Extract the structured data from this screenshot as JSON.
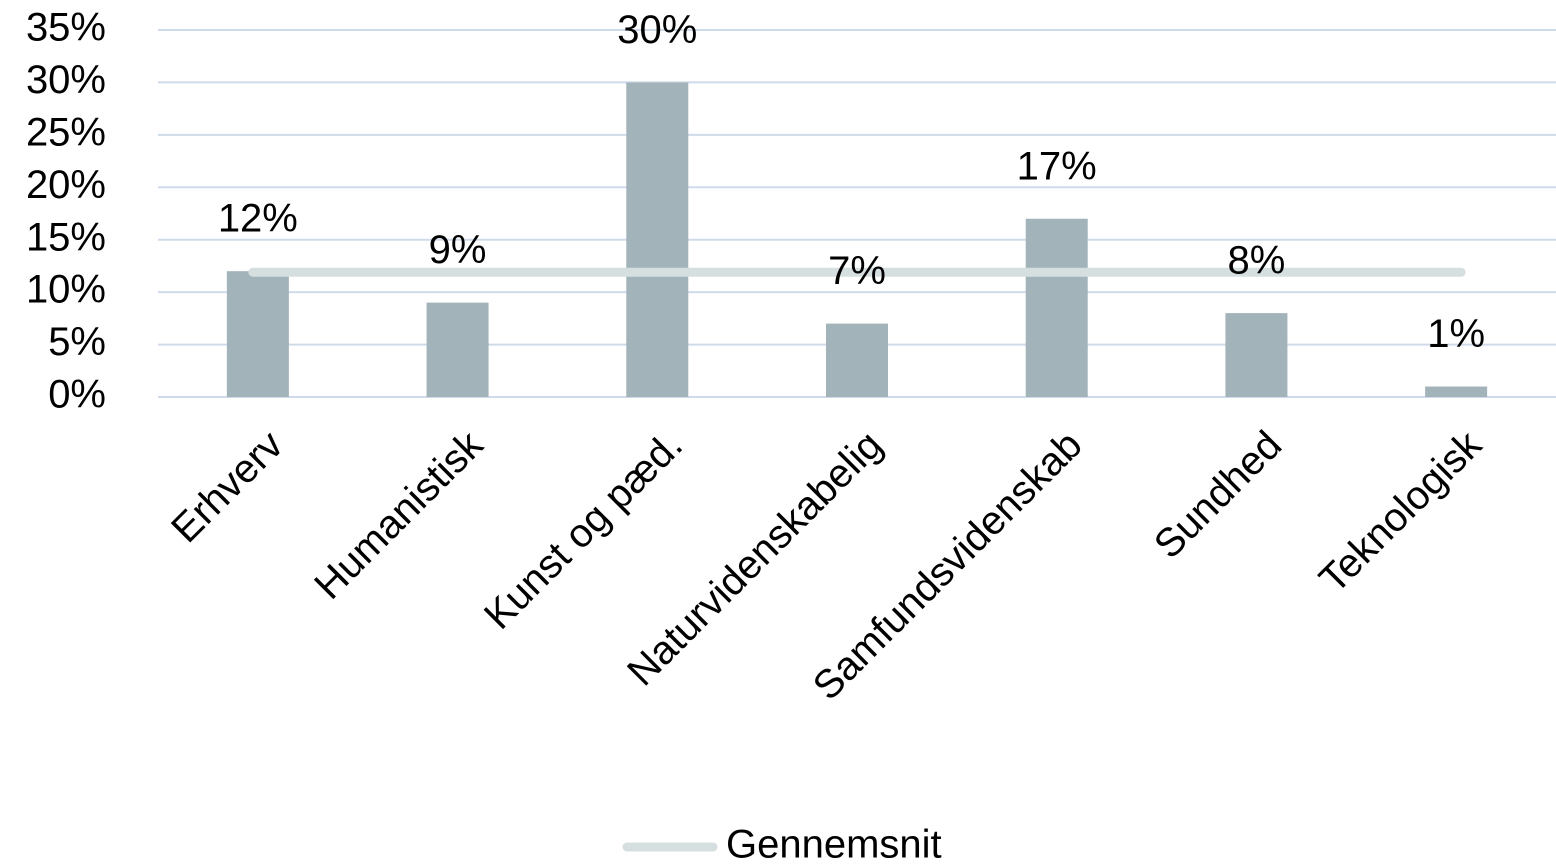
{
  "chart_data": {
    "type": "bar",
    "categories": [
      "Erhverv",
      "Humanistisk",
      "Kunst og pæd.",
      "Naturvidenskabelig",
      "Samfundsvidenskab",
      "Sundhed",
      "Teknologisk"
    ],
    "values": [
      12,
      9,
      30,
      7,
      17,
      8,
      1
    ],
    "value_labels": [
      "12%",
      "9%",
      "30%",
      "7%",
      "17%",
      "8%",
      "1%"
    ],
    "color": "#a2b3b9",
    "average": {
      "name": "Gennemsnit",
      "value": 11.9,
      "color": "#d5dfe0"
    },
    "ylim": [
      0,
      35
    ],
    "yticks": [
      {
        "value": 0,
        "label": "0%"
      },
      {
        "value": 5,
        "label": "5%"
      },
      {
        "value": 10,
        "label": "10%"
      },
      {
        "value": 15,
        "label": "15%"
      },
      {
        "value": 20,
        "label": "20%"
      },
      {
        "value": 25,
        "label": "25%"
      },
      {
        "value": 30,
        "label": "30%"
      },
      {
        "value": 35,
        "label": "35%"
      }
    ],
    "grid": true,
    "legend": "bottom"
  }
}
